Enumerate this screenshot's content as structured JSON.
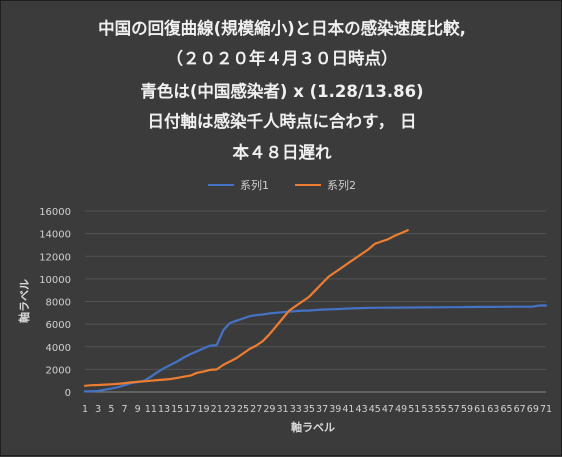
{
  "chart_data": {
    "type": "line",
    "title_lines": [
      "中国の回復曲線(規模縮小)と日本の感染速度比較,",
      "（２０２０年４月３０日時点）",
      "青色は(中国感染者) x (1.28/13.86)",
      "日付軸は感染千人時点に合わす， 日",
      "本４８日遅れ"
    ],
    "xlabel": "軸ラベル",
    "ylabel": "軸ラベル",
    "ylim": [
      0,
      16000
    ],
    "yticks": [
      0,
      2000,
      4000,
      6000,
      8000,
      10000,
      12000,
      14000,
      16000
    ],
    "xticks": [
      1,
      3,
      5,
      7,
      9,
      11,
      13,
      15,
      17,
      19,
      21,
      23,
      25,
      27,
      29,
      31,
      33,
      35,
      37,
      39,
      41,
      43,
      45,
      47,
      49,
      51,
      53,
      55,
      57,
      59,
      61,
      63,
      65,
      67,
      69,
      71
    ],
    "grid": true,
    "legend_position": "top",
    "series": [
      {
        "name": "系列1",
        "color": "#4472c4",
        "x": [
          1,
          2,
          3,
          4,
          5,
          6,
          7,
          8,
          9,
          10,
          11,
          12,
          13,
          14,
          15,
          16,
          17,
          18,
          19,
          20,
          21,
          22,
          23,
          24,
          25,
          26,
          27,
          28,
          29,
          30,
          31,
          32,
          33,
          34,
          35,
          36,
          37,
          38,
          39,
          40,
          41,
          42,
          43,
          44,
          45,
          46,
          47,
          48,
          49,
          50,
          51,
          52,
          53,
          54,
          55,
          56,
          57,
          58,
          59,
          60,
          61,
          62,
          63,
          64,
          65,
          66,
          67,
          68,
          69,
          70,
          71
        ],
        "values": [
          50,
          60,
          90,
          200,
          300,
          420,
          600,
          780,
          880,
          1000,
          1350,
          1750,
          2100,
          2400,
          2700,
          3050,
          3350,
          3600,
          3850,
          4100,
          4150,
          5450,
          6100,
          6300,
          6500,
          6700,
          6800,
          6850,
          6950,
          7000,
          7050,
          7100,
          7150,
          7200,
          7200,
          7250,
          7280,
          7300,
          7320,
          7350,
          7380,
          7400,
          7420,
          7430,
          7440,
          7450,
          7450,
          7460,
          7460,
          7470,
          7470,
          7480,
          7480,
          7490,
          7490,
          7500,
          7500,
          7500,
          7510,
          7510,
          7520,
          7520,
          7520,
          7530,
          7530,
          7540,
          7540,
          7540,
          7550,
          7650,
          7650
        ]
      },
      {
        "name": "系列2",
        "color": "#ed7d31",
        "x": [
          1,
          2,
          3,
          4,
          5,
          6,
          7,
          8,
          9,
          10,
          11,
          12,
          13,
          14,
          15,
          16,
          17,
          18,
          19,
          20,
          21,
          22,
          23,
          24,
          25,
          26,
          27,
          28,
          29,
          30,
          31,
          32,
          33,
          34,
          35,
          36,
          37,
          38,
          39,
          40,
          41,
          42,
          43,
          44,
          45,
          46,
          47,
          48,
          49,
          50
        ],
        "values": [
          550,
          600,
          620,
          650,
          680,
          720,
          780,
          850,
          900,
          950,
          1000,
          1050,
          1100,
          1150,
          1250,
          1350,
          1450,
          1700,
          1800,
          1950,
          2000,
          2400,
          2700,
          3000,
          3400,
          3800,
          4100,
          4500,
          5100,
          5800,
          6500,
          7200,
          7600,
          8000,
          8400,
          9000,
          9600,
          10200,
          10600,
          11000,
          11400,
          11800,
          12200,
          12600,
          13100,
          13300,
          13500,
          13800,
          14050,
          14300
        ]
      }
    ]
  }
}
